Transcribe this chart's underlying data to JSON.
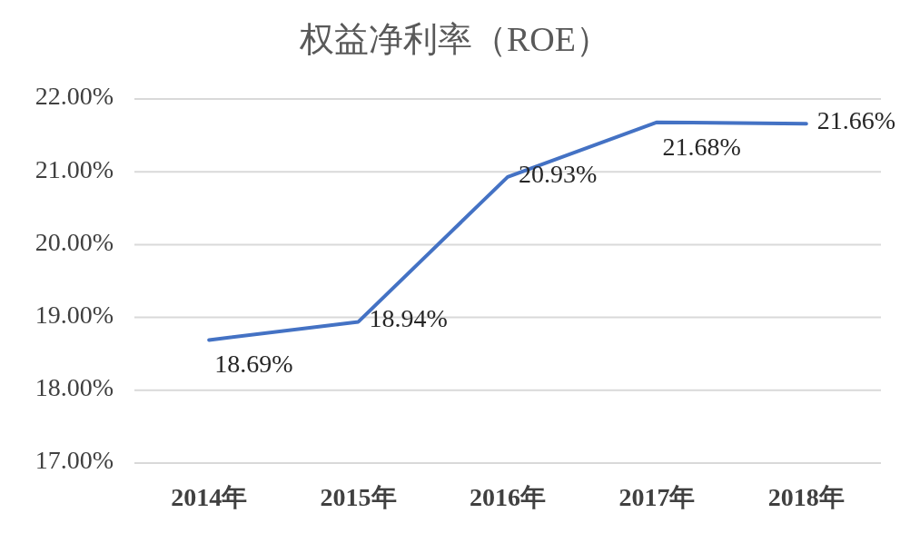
{
  "chart_data": {
    "type": "line",
    "title": "权益净利率（ROE）",
    "categories": [
      "2014年",
      "2015年",
      "2016年",
      "2017年",
      "2018年"
    ],
    "values": [
      18.69,
      18.94,
      20.93,
      21.68,
      21.66
    ],
    "color": "#4472c4",
    "value_labels": [
      "18.69%",
      "18.94%",
      "20.93%",
      "21.68%",
      "21.66%"
    ],
    "ylim": [
      17,
      22
    ],
    "yticks": [
      {
        "value": 17,
        "label": "17.00%"
      },
      {
        "value": 18,
        "label": "18.00%"
      },
      {
        "value": 19,
        "label": "19.00%"
      },
      {
        "value": 20,
        "label": "20.00%"
      },
      {
        "value": 21,
        "label": "21.00%"
      },
      {
        "value": 22,
        "label": "22.00%"
      }
    ],
    "grid": "y"
  }
}
